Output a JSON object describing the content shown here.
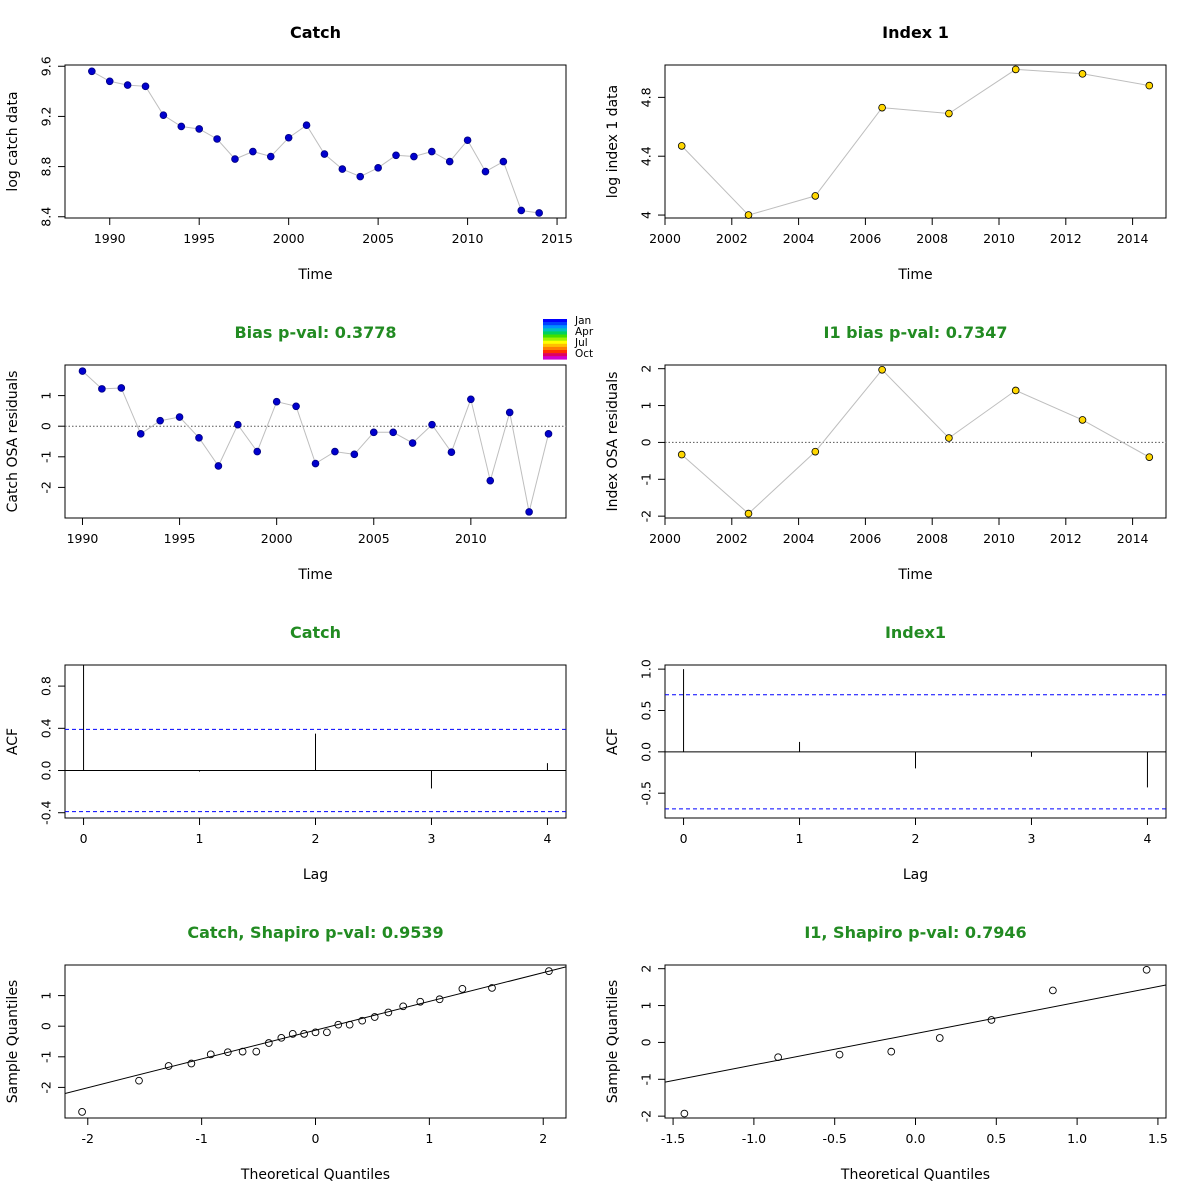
{
  "colors": {
    "title_black": "#000000",
    "title_green": "#228B22",
    "catch_point": "#0000CD",
    "index_point": "#FFD700",
    "connector": "#BEBEBE",
    "ci_line": "#0000FF"
  },
  "legend": {
    "labels": [
      "Jan",
      "Apr",
      "Jul",
      "Oct"
    ]
  },
  "chart_data": [
    {
      "type": "scatter",
      "title": "Catch",
      "xlabel": "Time",
      "ylabel": "log catch data",
      "xlim": [
        1987.5,
        2015.5
      ],
      "ylim": [
        8.39,
        9.61
      ],
      "xticks": [
        1990,
        1995,
        2000,
        2005,
        2010,
        2015
      ],
      "yticks": [
        8.4,
        8.8,
        9.2,
        9.6
      ],
      "x": [
        1989,
        1990,
        1991,
        1992,
        1993,
        1994,
        1995,
        1996,
        1997,
        1998,
        1999,
        2000,
        2001,
        2002,
        2003,
        2004,
        2005,
        2006,
        2007,
        2008,
        2009,
        2010,
        2011,
        2012,
        2013,
        2014
      ],
      "y": [
        9.56,
        9.48,
        9.45,
        9.44,
        9.21,
        9.12,
        9.1,
        9.02,
        8.86,
        8.92,
        8.88,
        9.03,
        9.13,
        8.9,
        8.78,
        8.72,
        8.79,
        8.89,
        8.88,
        8.92,
        8.84,
        9.01,
        8.76,
        8.84,
        8.45,
        8.43
      ]
    },
    {
      "type": "scatter",
      "title": "Index 1",
      "xlabel": "Time",
      "ylabel": "log index 1 data",
      "xlim": [
        2000.0,
        2015.0
      ],
      "ylim": [
        3.98,
        5.02
      ],
      "xticks": [
        2000,
        2002,
        2004,
        2006,
        2008,
        2010,
        2012,
        2014
      ],
      "yticks": [
        4.0,
        4.4,
        4.8
      ],
      "x": [
        2000.5,
        2002.5,
        2004.5,
        2006.5,
        2008.5,
        2010.5,
        2012.5,
        2014.5
      ],
      "y": [
        4.47,
        4.0,
        4.13,
        4.73,
        4.69,
        4.99,
        4.96,
        4.88
      ]
    },
    {
      "type": "scatter",
      "title": "Bias p-val: 0.3778",
      "xlabel": "Time",
      "ylabel": "Catch OSA residuals",
      "xlim": [
        1989.1,
        2014.9
      ],
      "ylim": [
        -3.0,
        2.0
      ],
      "xticks": [
        1990,
        1995,
        2000,
        2005,
        2010
      ],
      "yticks": [
        -2,
        -1,
        0,
        1
      ],
      "x": [
        1990,
        1991,
        1992,
        1993,
        1994,
        1995,
        1996,
        1997,
        1998,
        1999,
        2000,
        2001,
        2002,
        2003,
        2004,
        2005,
        2006,
        2007,
        2008,
        2009,
        2010,
        2011,
        2012,
        2013,
        2014
      ],
      "y": [
        1.8,
        1.22,
        1.25,
        -0.25,
        0.18,
        0.3,
        -0.38,
        -1.3,
        0.05,
        -0.83,
        0.8,
        0.65,
        -1.22,
        -0.83,
        -0.92,
        -0.2,
        -0.2,
        -0.55,
        0.05,
        -0.85,
        0.88,
        -1.78,
        0.45,
        -2.8,
        -0.25
      ]
    },
    {
      "type": "scatter",
      "title": "I1 bias p-val: 0.7347",
      "xlabel": "Time",
      "ylabel": "Index OSA residuals",
      "xlim": [
        2000.0,
        2015.0
      ],
      "ylim": [
        -2.05,
        2.1
      ],
      "xticks": [
        2000,
        2002,
        2004,
        2006,
        2008,
        2010,
        2012,
        2014
      ],
      "yticks": [
        -2,
        -1,
        0,
        1,
        2
      ],
      "x": [
        2000.5,
        2002.5,
        2004.5,
        2006.5,
        2008.5,
        2010.5,
        2012.5,
        2014.5
      ],
      "y": [
        -0.33,
        -1.93,
        -0.25,
        1.97,
        0.12,
        1.41,
        0.61,
        -0.4
      ]
    },
    {
      "type": "bar",
      "title": "Catch",
      "xlabel": "Lag",
      "ylabel": "ACF",
      "xlim": [
        -0.16,
        4.16
      ],
      "ylim": [
        -0.45,
        1.0
      ],
      "xticks": [
        0,
        1,
        2,
        3,
        4
      ],
      "yticks": [
        "-0.4",
        "0.0",
        "0.4",
        "0.8"
      ],
      "lag": [
        0,
        1,
        2,
        3,
        4
      ],
      "acf": [
        1.0,
        -0.01,
        0.35,
        -0.17,
        0.07
      ],
      "ci": [
        0.39,
        -0.39
      ]
    },
    {
      "type": "bar",
      "title": "Index1",
      "xlabel": "Lag",
      "ylabel": "ACF",
      "xlim": [
        -0.16,
        4.16
      ],
      "ylim": [
        -0.8,
        1.05
      ],
      "xticks": [
        0,
        1,
        2,
        3,
        4
      ],
      "yticks": [
        "-0.5",
        "0.0",
        "0.5",
        "1.0"
      ],
      "lag": [
        0,
        1,
        2,
        3,
        4
      ],
      "acf": [
        1.0,
        0.12,
        -0.2,
        -0.06,
        -0.43
      ],
      "ci": [
        0.69,
        -0.69
      ]
    },
    {
      "type": "scatter",
      "title": "Catch, Shapiro p-val: 0.9539",
      "xlabel": "Theoretical Quantiles",
      "ylabel": "Sample Quantiles",
      "xlim": [
        -2.2,
        2.2
      ],
      "ylim": [
        -3.0,
        2.0
      ],
      "xticks": [
        -2,
        -1,
        0,
        1,
        2
      ],
      "yticks": [
        -2,
        -1,
        0,
        1
      ],
      "x": [
        -2.05,
        -1.55,
        -1.29,
        -1.09,
        -0.92,
        -0.77,
        -0.64,
        -0.52,
        -0.41,
        -0.3,
        -0.2,
        -0.1,
        0.0,
        0.1,
        0.2,
        0.3,
        0.41,
        0.52,
        0.64,
        0.77,
        0.92,
        1.09,
        1.29,
        1.55,
        2.05
      ],
      "y": [
        -2.8,
        -1.78,
        -1.3,
        -1.22,
        -0.92,
        -0.85,
        -0.83,
        -0.83,
        -0.55,
        -0.38,
        -0.25,
        -0.25,
        -0.2,
        -0.2,
        0.05,
        0.05,
        0.18,
        0.3,
        0.45,
        0.65,
        0.8,
        0.88,
        1.22,
        1.25,
        1.8
      ],
      "line": {
        "intercept": -0.13,
        "slope": 0.94
      }
    },
    {
      "type": "scatter",
      "title": "I1, Shapiro p-val: 0.7946",
      "xlabel": "Theoretical Quantiles",
      "ylabel": "Sample Quantiles",
      "xlim": [
        -1.55,
        1.55
      ],
      "ylim": [
        -2.05,
        2.1
      ],
      "xticks": [
        "-1.5",
        "-1.0",
        "-0.5",
        "0.0",
        "0.5",
        "1.0",
        "1.5"
      ],
      "yticks": [
        -2,
        -1,
        0,
        1,
        2
      ],
      "x": [
        -1.43,
        -0.85,
        -0.47,
        -0.15,
        0.15,
        0.47,
        0.85,
        1.43
      ],
      "y": [
        -1.93,
        -0.4,
        -0.33,
        -0.25,
        0.12,
        0.61,
        1.41,
        1.97
      ],
      "line": {
        "intercept": 0.24,
        "slope": 0.85
      }
    }
  ]
}
